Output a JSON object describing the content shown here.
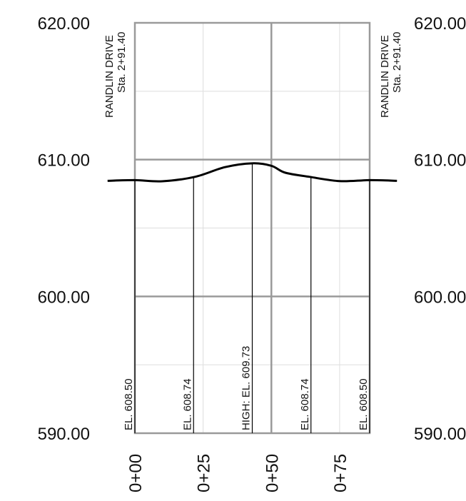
{
  "chart_data": {
    "type": "line",
    "xlabel": "",
    "ylabel": "",
    "y_ticks": [
      "620.00",
      "610.00",
      "600.00",
      "590.00"
    ],
    "right_y_ticks": [
      "620.00",
      "610.00",
      "600.00",
      "590.00"
    ],
    "ylim": [
      590,
      620
    ],
    "x_ticks": [
      "0+00",
      "0+25",
      "0+50",
      "0+75"
    ],
    "xlim": [
      0,
      86
    ],
    "grid": true,
    "series": [
      {
        "x": [
          -10,
          0,
          10,
          22,
          33,
          43,
          50,
          55,
          64,
          75,
          86,
          96
        ],
        "y": [
          608.45,
          608.5,
          608.42,
          608.74,
          609.45,
          609.73,
          609.55,
          609.05,
          608.74,
          608.43,
          608.5,
          608.45
        ]
      }
    ],
    "profile_labels": [
      {
        "x": 0,
        "text": "EL. 608.50"
      },
      {
        "x": 21.5,
        "text": "EL. 608.74"
      },
      {
        "x": 43,
        "text": "HIGH: EL. 609.73"
      },
      {
        "x": 64.5,
        "text": "EL. 608.74"
      },
      {
        "x": 86,
        "text": "EL. 608.50"
      }
    ],
    "road_labels": [
      {
        "side": "left",
        "road": "RANDLIN DRIVE",
        "station": "Sta. 2+91.40"
      },
      {
        "side": "right",
        "road": "RANDLIN DRIVE",
        "station": "Sta. 2+91.40"
      }
    ],
    "colors": {
      "profile": "#000000",
      "grid_major": "#9a9a9a",
      "grid_minor": "#dedede",
      "frame": "#9a9a9a"
    }
  }
}
